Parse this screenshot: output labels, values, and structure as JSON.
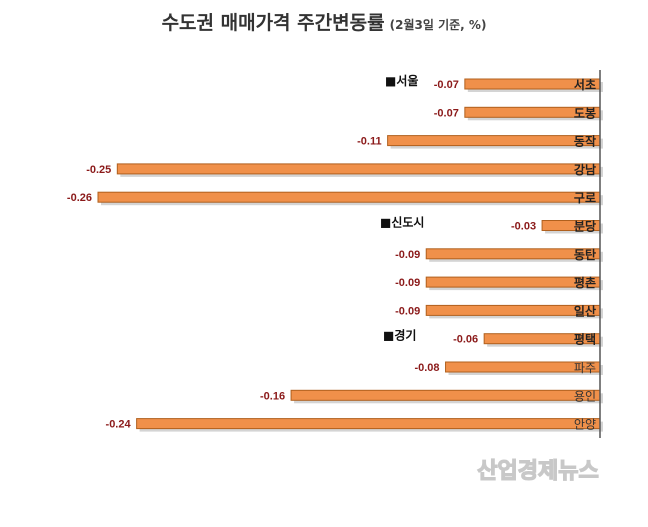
{
  "chart_data": {
    "type": "bar",
    "orientation": "horizontal",
    "title": "수도권 매매가격 주간변동률",
    "subtitle": "(2월3일 기준, %)",
    "groups": [
      {
        "label": "■서울",
        "start_index": 0
      },
      {
        "label": "■신도시",
        "start_index": 5
      },
      {
        "label": "■경기",
        "start_index": 9
      }
    ],
    "categories": [
      "서초",
      "도봉",
      "동작",
      "강남",
      "구로",
      "분당",
      "동탄",
      "평촌",
      "일산",
      "평택",
      "파주",
      "용인",
      "안양"
    ],
    "values": [
      -0.07,
      -0.07,
      -0.11,
      -0.25,
      -0.26,
      -0.03,
      -0.09,
      -0.09,
      -0.09,
      -0.06,
      -0.08,
      -0.16,
      -0.24
    ],
    "value_labels": [
      "-0.07",
      "-0.07",
      "-0.11",
      "-0.25",
      "-0.26",
      "-0.03",
      "-0.09",
      "-0.09",
      "-0.09",
      "-0.06",
      "-0.08",
      "-0.16",
      "-0.24"
    ],
    "xlim": [
      -0.26,
      0
    ],
    "bar_color": "#f0904a",
    "bar_edge_color": "#b0601e",
    "value_label_color": "#8b1a1a",
    "grid": false
  },
  "watermark": "산업경제뉴스"
}
